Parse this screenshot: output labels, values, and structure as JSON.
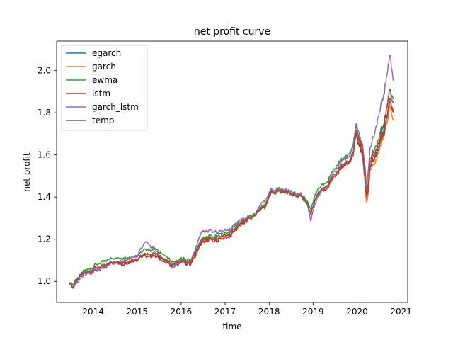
{
  "chart_data": {
    "type": "line",
    "title": "net profit curve",
    "xlabel": "time",
    "ylabel": "net profit",
    "x_ticks": [
      "2014",
      "2015",
      "2016",
      "2017",
      "2018",
      "2019",
      "2020",
      "2021"
    ],
    "y_ticks": [
      "1.0",
      "1.2",
      "1.4",
      "1.6",
      "1.8",
      "2.0"
    ],
    "xlim": [
      2013.17,
      2021.15
    ],
    "ylim": [
      0.9,
      2.14
    ],
    "grid": false,
    "legend_position": "top-left",
    "anchors_x": [
      2013.45,
      2013.55,
      2013.7,
      2014.0,
      2014.2,
      2014.45,
      2014.7,
      2015.0,
      2015.2,
      2015.45,
      2015.65,
      2015.85,
      2016.0,
      2016.2,
      2016.45,
      2016.55,
      2016.8,
      2017.0,
      2017.3,
      2017.6,
      2017.9,
      2018.05,
      2018.3,
      2018.6,
      2018.85,
      2018.95,
      2019.05,
      2019.3,
      2019.6,
      2019.85,
      2020.0,
      2020.1,
      2020.18,
      2020.22,
      2020.3,
      2020.45,
      2020.6,
      2020.75,
      2020.82
    ],
    "series": [
      {
        "name": "egarch",
        "color": "#1f77b4",
        "values": [
          1.0,
          0.97,
          1.03,
          1.05,
          1.07,
          1.08,
          1.1,
          1.1,
          1.12,
          1.13,
          1.1,
          1.07,
          1.1,
          1.08,
          1.18,
          1.2,
          1.2,
          1.21,
          1.26,
          1.3,
          1.35,
          1.43,
          1.42,
          1.42,
          1.38,
          1.32,
          1.39,
          1.45,
          1.53,
          1.58,
          1.68,
          1.64,
          1.53,
          1.37,
          1.57,
          1.63,
          1.73,
          1.84,
          1.82
        ]
      },
      {
        "name": "garch",
        "color": "#ff7f0e",
        "values": [
          1.0,
          0.97,
          1.03,
          1.05,
          1.07,
          1.08,
          1.1,
          1.1,
          1.12,
          1.13,
          1.1,
          1.07,
          1.1,
          1.08,
          1.18,
          1.2,
          1.2,
          1.21,
          1.26,
          1.3,
          1.35,
          1.43,
          1.42,
          1.42,
          1.38,
          1.32,
          1.39,
          1.45,
          1.53,
          1.58,
          1.67,
          1.62,
          1.5,
          1.35,
          1.55,
          1.6,
          1.7,
          1.82,
          1.78
        ]
      },
      {
        "name": "ewma",
        "color": "#2ca02c",
        "values": [
          1.0,
          0.98,
          1.04,
          1.06,
          1.09,
          1.1,
          1.12,
          1.12,
          1.14,
          1.15,
          1.12,
          1.08,
          1.11,
          1.09,
          1.19,
          1.21,
          1.21,
          1.22,
          1.27,
          1.31,
          1.36,
          1.44,
          1.43,
          1.43,
          1.39,
          1.34,
          1.41,
          1.48,
          1.57,
          1.61,
          1.71,
          1.66,
          1.56,
          1.42,
          1.6,
          1.67,
          1.76,
          1.9,
          1.88
        ]
      },
      {
        "name": "lstm",
        "color": "#d62728",
        "values": [
          1.0,
          0.97,
          1.03,
          1.04,
          1.06,
          1.08,
          1.09,
          1.1,
          1.11,
          1.12,
          1.09,
          1.06,
          1.09,
          1.07,
          1.17,
          1.19,
          1.19,
          1.2,
          1.25,
          1.3,
          1.35,
          1.43,
          1.42,
          1.42,
          1.38,
          1.32,
          1.39,
          1.45,
          1.53,
          1.57,
          1.67,
          1.62,
          1.52,
          1.38,
          1.57,
          1.63,
          1.72,
          1.86,
          1.82
        ]
      },
      {
        "name": "garch_lstm",
        "color": "#9467bd",
        "values": [
          1.0,
          0.96,
          1.02,
          1.04,
          1.06,
          1.08,
          1.11,
          1.12,
          1.18,
          1.14,
          1.1,
          1.06,
          1.1,
          1.08,
          1.22,
          1.24,
          1.23,
          1.23,
          1.28,
          1.3,
          1.38,
          1.44,
          1.43,
          1.43,
          1.38,
          1.29,
          1.37,
          1.46,
          1.56,
          1.6,
          1.72,
          1.66,
          1.58,
          1.45,
          1.66,
          1.76,
          1.9,
          2.07,
          1.98
        ]
      },
      {
        "name": "temp",
        "color": "#8c564b",
        "values": [
          1.0,
          0.97,
          1.03,
          1.05,
          1.07,
          1.08,
          1.1,
          1.1,
          1.12,
          1.13,
          1.1,
          1.07,
          1.1,
          1.08,
          1.18,
          1.2,
          1.2,
          1.21,
          1.26,
          1.3,
          1.35,
          1.43,
          1.42,
          1.42,
          1.38,
          1.32,
          1.39,
          1.46,
          1.54,
          1.58,
          1.69,
          1.64,
          1.54,
          1.4,
          1.59,
          1.65,
          1.75,
          1.9,
          1.86
        ]
      }
    ]
  }
}
